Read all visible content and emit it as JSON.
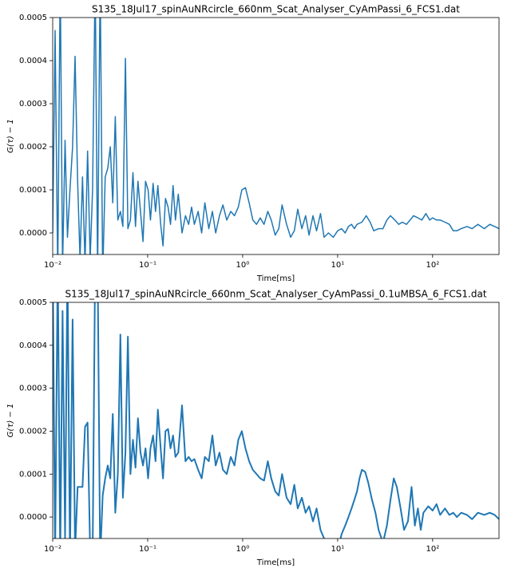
{
  "chart_data": [
    {
      "type": "line",
      "title": "S135_18Jul17_spinAuNRcircle_660nm_Scat_Analyser_CyAmPassi_6_FCS1.dat",
      "xlabel": "Time[ms]",
      "ylabel": "G(τ) − 1",
      "xlog": true,
      "color": "#1f77b4",
      "line_width": 1.5,
      "xlim": [
        0.01,
        500
      ],
      "ylim": [
        -5e-05,
        0.0005
      ],
      "xticks": [
        {
          "value": 0.01,
          "label": "10⁻²"
        },
        {
          "value": 0.1,
          "label": "10⁻¹"
        },
        {
          "value": 1,
          "label": "10⁰"
        },
        {
          "value": 10,
          "label": "10¹"
        },
        {
          "value": 100,
          "label": "10²"
        }
      ],
      "yticks": [
        {
          "value": 0,
          "label": "0.0000"
        },
        {
          "value": 0.0001,
          "label": "0.0001"
        },
        {
          "value": 0.0002,
          "label": "0.0002"
        },
        {
          "value": 0.0003,
          "label": "0.0003"
        },
        {
          "value": 0.0004,
          "label": "0.0004"
        },
        {
          "value": 0.0005,
          "label": "0.0005"
        }
      ],
      "x": [
        0.01,
        0.0106,
        0.0113,
        0.012,
        0.0127,
        0.0135,
        0.0143,
        0.0152,
        0.0162,
        0.0172,
        0.0183,
        0.0194,
        0.0206,
        0.0219,
        0.0233,
        0.0248,
        0.0263,
        0.028,
        0.0297,
        0.0316,
        0.0336,
        0.0357,
        0.038,
        0.0404,
        0.0429,
        0.0456,
        0.0485,
        0.0516,
        0.0548,
        0.0583,
        0.0619,
        0.0658,
        0.07,
        0.0744,
        0.079,
        0.084,
        0.0893,
        0.0949,
        0.101,
        0.107,
        0.114,
        0.121,
        0.128,
        0.137,
        0.145,
        0.154,
        0.164,
        0.174,
        0.185,
        0.196,
        0.21,
        0.23,
        0.25,
        0.27,
        0.29,
        0.31,
        0.34,
        0.37,
        0.4,
        0.44,
        0.48,
        0.52,
        0.57,
        0.62,
        0.68,
        0.75,
        0.82,
        0.9,
        0.98,
        1.07,
        1.17,
        1.28,
        1.4,
        1.53,
        1.68,
        1.84,
        2.0,
        2.2,
        2.4,
        2.6,
        2.9,
        3.2,
        3.5,
        3.8,
        4.2,
        4.6,
        5.0,
        5.5,
        6.0,
        6.6,
        7.2,
        8,
        9,
        10,
        11,
        12,
        13,
        14,
        15,
        16,
        18,
        20,
        22,
        24,
        27,
        30,
        33,
        36,
        40,
        44,
        48,
        53,
        58,
        63,
        70,
        77,
        85,
        93,
        100,
        110,
        120,
        135,
        150,
        165,
        180,
        200,
        230,
        260,
        300,
        350,
        400,
        450,
        500
      ],
      "values": [
        0,
        0.00047,
        -0.0001,
        0.0006,
        -8e-05,
        0.000215,
        -1e-05,
        0.0001,
        0.0002,
        0.00041,
        0.00012,
        -6e-05,
        0.00013,
        -7e-05,
        0.00019,
        -6e-05,
        0.0001,
        0.0006,
        -0.0001,
        0.0006,
        -0.0001,
        0.00013,
        0.00015,
        0.0002,
        7e-05,
        0.00027,
        3e-05,
        5e-05,
        1.5e-05,
        0.000405,
        1e-05,
        3e-05,
        0.00014,
        1.5e-05,
        0.00012,
        5e-05,
        -2e-05,
        0.00012,
        0.0001,
        3e-05,
        0.000115,
        5e-05,
        0.00011,
        2e-05,
        -3e-05,
        8e-05,
        6e-05,
        2e-05,
        0.00011,
        3e-05,
        9e-05,
        0,
        4e-05,
        2e-05,
        6e-05,
        2e-05,
        5e-05,
        0,
        7e-05,
        1e-05,
        5e-05,
        0,
        4e-05,
        6.5e-05,
        3e-05,
        5e-05,
        4e-05,
        6e-05,
        0.0001,
        0.000105,
        7e-05,
        3e-05,
        2e-05,
        3.5e-05,
        2e-05,
        5e-05,
        3e-05,
        -5e-06,
        1e-05,
        6.5e-05,
        2e-05,
        -1e-05,
        5e-06,
        5.5e-05,
        1e-05,
        4e-05,
        -5e-06,
        4e-05,
        5e-06,
        4.5e-05,
        -1e-05,
        0,
        -1e-05,
        5e-06,
        1e-05,
        0,
        1.5e-05,
        2e-05,
        1e-05,
        2e-05,
        2.5e-05,
        4e-05,
        2.5e-05,
        5e-06,
        1e-05,
        1e-05,
        3e-05,
        4e-05,
        3e-05,
        2e-05,
        2.5e-05,
        2e-05,
        3e-05,
        4e-05,
        3.5e-05,
        3e-05,
        4.5e-05,
        3e-05,
        3.5e-05,
        3e-05,
        3e-05,
        2.5e-05,
        2e-05,
        5e-06,
        5e-06,
        1e-05,
        1.5e-05,
        1e-05,
        2e-05,
        1e-05,
        2e-05,
        1.5e-05,
        1e-05
      ]
    },
    {
      "type": "line",
      "title": "S135_18Jul17_spinAuNRcircle_660nm_Scat_Analyser_CyAmPassi_0.1uMBSA_6_FCS1.dat",
      "xlabel": "Time[ms]",
      "ylabel": "G(τ) − 1",
      "xlog": true,
      "color": "#1f77b4",
      "line_width": 2,
      "xlim": [
        0.01,
        500
      ],
      "ylim": [
        -5e-05,
        0.0005
      ],
      "xticks": [
        {
          "value": 0.01,
          "label": "10⁻²"
        },
        {
          "value": 0.1,
          "label": "10⁻¹"
        },
        {
          "value": 1,
          "label": "10⁰"
        },
        {
          "value": 10,
          "label": "10¹"
        },
        {
          "value": 100,
          "label": "10²"
        }
      ],
      "yticks": [
        {
          "value": 0,
          "label": "0.0000"
        },
        {
          "value": 0.0001,
          "label": "0.0001"
        },
        {
          "value": 0.0002,
          "label": "0.0002"
        },
        {
          "value": 0.0003,
          "label": "0.0003"
        },
        {
          "value": 0.0004,
          "label": "0.0004"
        },
        {
          "value": 0.0005,
          "label": "0.0005"
        }
      ],
      "x": [
        0.01,
        0.0106,
        0.0113,
        0.012,
        0.0127,
        0.0135,
        0.0143,
        0.0152,
        0.0162,
        0.0172,
        0.0183,
        0.0194,
        0.0206,
        0.0219,
        0.0233,
        0.0248,
        0.0263,
        0.028,
        0.0297,
        0.0316,
        0.0336,
        0.0357,
        0.038,
        0.0404,
        0.0429,
        0.0456,
        0.0485,
        0.0516,
        0.0548,
        0.0583,
        0.0619,
        0.0658,
        0.07,
        0.0744,
        0.079,
        0.084,
        0.0893,
        0.0949,
        0.101,
        0.107,
        0.114,
        0.121,
        0.128,
        0.137,
        0.145,
        0.154,
        0.164,
        0.174,
        0.185,
        0.196,
        0.21,
        0.23,
        0.25,
        0.27,
        0.29,
        0.31,
        0.34,
        0.37,
        0.4,
        0.44,
        0.48,
        0.52,
        0.57,
        0.62,
        0.68,
        0.75,
        0.82,
        0.9,
        0.98,
        1.07,
        1.17,
        1.28,
        1.4,
        1.53,
        1.68,
        1.84,
        2.0,
        2.2,
        2.4,
        2.6,
        2.9,
        3.2,
        3.5,
        3.8,
        4.2,
        4.6,
        5.0,
        5.5,
        6.0,
        6.6,
        7.2,
        8,
        9,
        10,
        11,
        12,
        13,
        14,
        15,
        16,
        17,
        18,
        19.5,
        21,
        23,
        25,
        27,
        30,
        33,
        36,
        39,
        42,
        46,
        50,
        55,
        60,
        65,
        70,
        75,
        80,
        90,
        100,
        110,
        120,
        135,
        150,
        165,
        180,
        200,
        230,
        260,
        300,
        350,
        400,
        450,
        500
      ],
      "values": [
        0.0006,
        -0.0001,
        0.0006,
        -0.0001,
        0.00048,
        -5e-05,
        0.0006,
        -0.0001,
        0.00046,
        -8e-05,
        7e-05,
        7e-05,
        7e-05,
        0.00021,
        0.00022,
        -8e-05,
        -0.0001,
        0.0006,
        0.0006,
        -0.0001,
        5e-05,
        9e-05,
        0.00012,
        9e-05,
        0.00024,
        1e-05,
        0.0001,
        0.000425,
        4.5e-05,
        0.00015,
        0.00042,
        0.0001,
        0.00018,
        0.000115,
        0.00023,
        0.00015,
        0.00012,
        0.00016,
        9e-05,
        0.00016,
        0.00019,
        0.00013,
        0.00025,
        0.00016,
        9e-05,
        0.0002,
        0.000205,
        0.00016,
        0.00019,
        0.00014,
        0.00015,
        0.00026,
        0.00013,
        0.00014,
        0.00013,
        0.000135,
        0.00011,
        9e-05,
        0.00014,
        0.00013,
        0.00019,
        0.00012,
        0.00015,
        0.00011,
        0.0001,
        0.00014,
        0.00012,
        0.00018,
        0.0002,
        0.00016,
        0.00013,
        0.00011,
        0.0001,
        9e-05,
        8.5e-05,
        0.00013,
        9e-05,
        6e-05,
        5e-05,
        0.0001,
        4.5e-05,
        3e-05,
        7.5e-05,
        2e-05,
        4.5e-05,
        1e-05,
        2.5e-05,
        -1e-05,
        2e-05,
        -3e-05,
        -5e-05,
        -8e-05,
        -9e-05,
        -8e-05,
        -4e-05,
        -2e-05,
        0,
        2e-05,
        4e-05,
        6e-05,
        9e-05,
        0.00011,
        0.000105,
        8e-05,
        4e-05,
        1e-05,
        -3e-05,
        -6e-05,
        -2e-05,
        4e-05,
        9e-05,
        7e-05,
        2e-05,
        -3e-05,
        -1e-05,
        7e-05,
        -2e-05,
        2e-05,
        -3e-05,
        1e-05,
        2.5e-05,
        1.5e-05,
        3e-05,
        5e-06,
        2e-05,
        5e-06,
        1e-05,
        0,
        1e-05,
        5e-06,
        -5e-06,
        1e-05,
        5e-06,
        1e-05,
        5e-06,
        -5e-06
      ]
    }
  ]
}
